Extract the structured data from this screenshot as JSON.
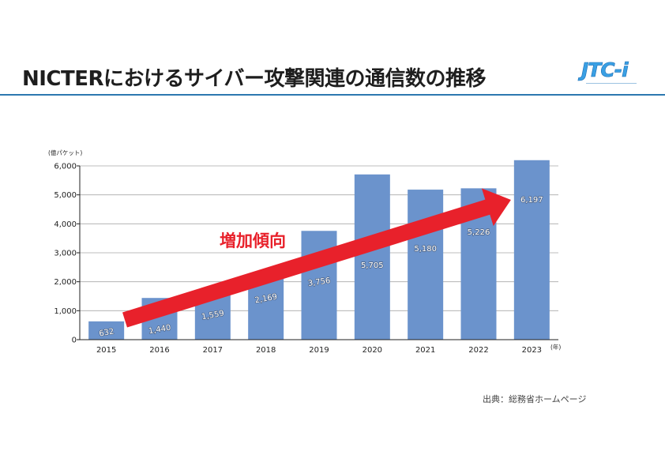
{
  "slide": {
    "title": "NICTERにおけるサイバー攻撃関連の通信数の推移",
    "logo_text": "JTC-i",
    "source": "出典：総務省ホームページ"
  },
  "colors": {
    "title_rule": "#2c78b0",
    "bar": "#6b93cc",
    "arrow": "#e8212b",
    "annotation": "#e8212b",
    "gridline": "#a8a8a8",
    "axis": "#222222"
  },
  "chart_data": {
    "type": "bar",
    "categories": [
      "2015",
      "2016",
      "2017",
      "2018",
      "2019",
      "2020",
      "2021",
      "2022",
      "2023"
    ],
    "values": [
      632,
      1440,
      1559,
      2169,
      3756,
      5705,
      5180,
      5226,
      6197
    ],
    "value_labels": [
      "632",
      "1,440",
      "1,559",
      "2,169",
      "3,756",
      "5,705",
      "5,180",
      "5,226",
      "6,197"
    ],
    "ylabel": "(億パケット)",
    "xlabel": "(年)",
    "ylim": [
      0,
      6000
    ],
    "yticks": [
      0,
      1000,
      2000,
      3000,
      4000,
      5000,
      6000
    ],
    "ytick_labels": [
      "0",
      "1,000",
      "2,000",
      "3,000",
      "4,000",
      "5,000",
      "6,000"
    ],
    "grid": true,
    "annotations": [
      {
        "text": "増加傾向"
      }
    ]
  }
}
